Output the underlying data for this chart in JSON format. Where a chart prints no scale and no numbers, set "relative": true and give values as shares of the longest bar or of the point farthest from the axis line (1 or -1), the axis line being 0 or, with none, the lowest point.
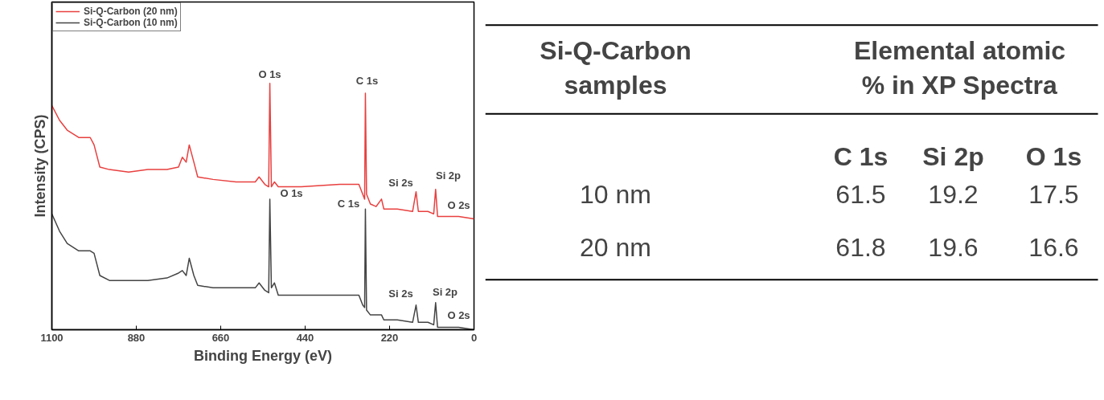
{
  "chart_data": [
    {
      "type": "line",
      "relative": true,
      "xlabel": "Binding Energy (eV)",
      "ylabel": "Intensity (CPS)",
      "xlim": [
        1100,
        0
      ],
      "xticks": [
        1100,
        880,
        660,
        440,
        220,
        0
      ],
      "tick_labels": "x",
      "grid": false,
      "legend": "top left",
      "marker": "none",
      "line_style": "solid",
      "x": [
        1100,
        1080,
        1060,
        1030,
        1000,
        990,
        975,
        950,
        900,
        850,
        800,
        770,
        760,
        750,
        742,
        730,
        720,
        680,
        620,
        570,
        560,
        545,
        535,
        532,
        528,
        520,
        510,
        450,
        350,
        300,
        290,
        285,
        283,
        280,
        270,
        255,
        241,
        235,
        200,
        160,
        151,
        145,
        120,
        105,
        100,
        95,
        80,
        40,
        0
      ],
      "series": [
        {
          "name": "Si-Q-Carbon (20 nm)",
          "color": "#e8403f",
          "values": [
            0.91,
            0.85,
            0.81,
            0.78,
            0.78,
            0.75,
            0.66,
            0.65,
            0.64,
            0.65,
            0.65,
            0.66,
            0.7,
            0.68,
            0.75,
            0.68,
            0.62,
            0.61,
            0.6,
            0.6,
            0.62,
            0.59,
            0.58,
            1.0,
            0.58,
            0.6,
            0.58,
            0.58,
            0.59,
            0.59,
            0.55,
            0.53,
            0.96,
            0.55,
            0.51,
            0.5,
            0.53,
            0.49,
            0.49,
            0.48,
            0.56,
            0.48,
            0.48,
            0.47,
            0.57,
            0.46,
            0.46,
            0.46,
            0.45
          ]
        },
        {
          "name": "Si-Q-Carbon (10 nm)",
          "color": "#444444",
          "values": [
            0.47,
            0.4,
            0.35,
            0.32,
            0.32,
            0.31,
            0.22,
            0.2,
            0.2,
            0.2,
            0.21,
            0.23,
            0.24,
            0.22,
            0.29,
            0.22,
            0.18,
            0.17,
            0.17,
            0.17,
            0.19,
            0.16,
            0.15,
            0.53,
            0.17,
            0.19,
            0.14,
            0.14,
            0.14,
            0.14,
            0.1,
            0.09,
            0.49,
            0.08,
            0.06,
            0.06,
            0.06,
            0.04,
            0.04,
            0.03,
            0.1,
            0.03,
            0.03,
            0.02,
            0.11,
            0.01,
            0.01,
            0.01,
            0.0
          ]
        }
      ],
      "annotations": [
        "O 1s",
        "C 1s",
        "Si 2s",
        "Si 2p",
        "O 2s",
        "O 1s",
        "C 1s",
        "Si 2s",
        "Si 2p",
        "O 2s"
      ]
    },
    {
      "type": "other",
      "ylabel": "Si-Q-Carbon\nsamples",
      "xlabel": "Elemental atomic\n% in XP Spectra",
      "categories": [
        "C 1s",
        "Si 2p",
        "O 1s"
      ],
      "y_categories": [
        "10 nm",
        "20 nm"
      ],
      "cell_labels": [
        [
          "61.5",
          "19.2",
          "17.5"
        ],
        [
          "61.8",
          "19.6",
          "16.6"
        ]
      ]
    }
  ]
}
